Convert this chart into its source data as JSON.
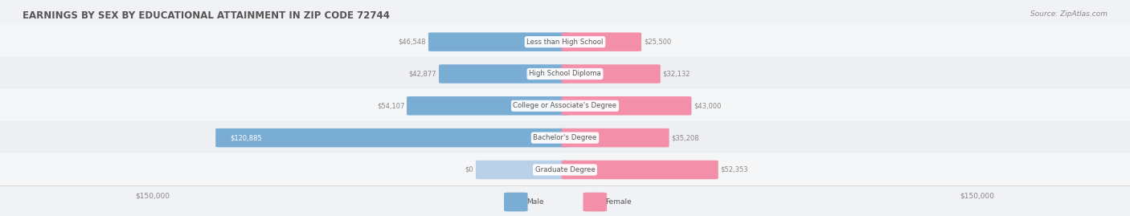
{
  "title": "EARNINGS BY SEX BY EDUCATIONAL ATTAINMENT IN ZIP CODE 72744",
  "source": "Source: ZipAtlas.com",
  "categories": [
    "Less than High School",
    "High School Diploma",
    "College or Associate's Degree",
    "Bachelor's Degree",
    "Graduate Degree"
  ],
  "male_values": [
    46548,
    42877,
    54107,
    120885,
    0
  ],
  "female_values": [
    25500,
    32132,
    43000,
    35208,
    52353
  ],
  "male_labels": [
    "$46,548",
    "$42,877",
    "$54,107",
    "$120,885",
    "$0"
  ],
  "female_labels": [
    "$25,500",
    "$32,132",
    "$43,000",
    "$35,208",
    "$52,353"
  ],
  "male_color": "#7aadd4",
  "female_color": "#f48faa",
  "male_color_light": "#b8d0e8",
  "female_color_light": "#f8c0d0",
  "axis_max": 150000,
  "background_color": "#f0f2f5",
  "label_color": "#888888",
  "title_color": "#555555",
  "tick_label_color": "#888888"
}
